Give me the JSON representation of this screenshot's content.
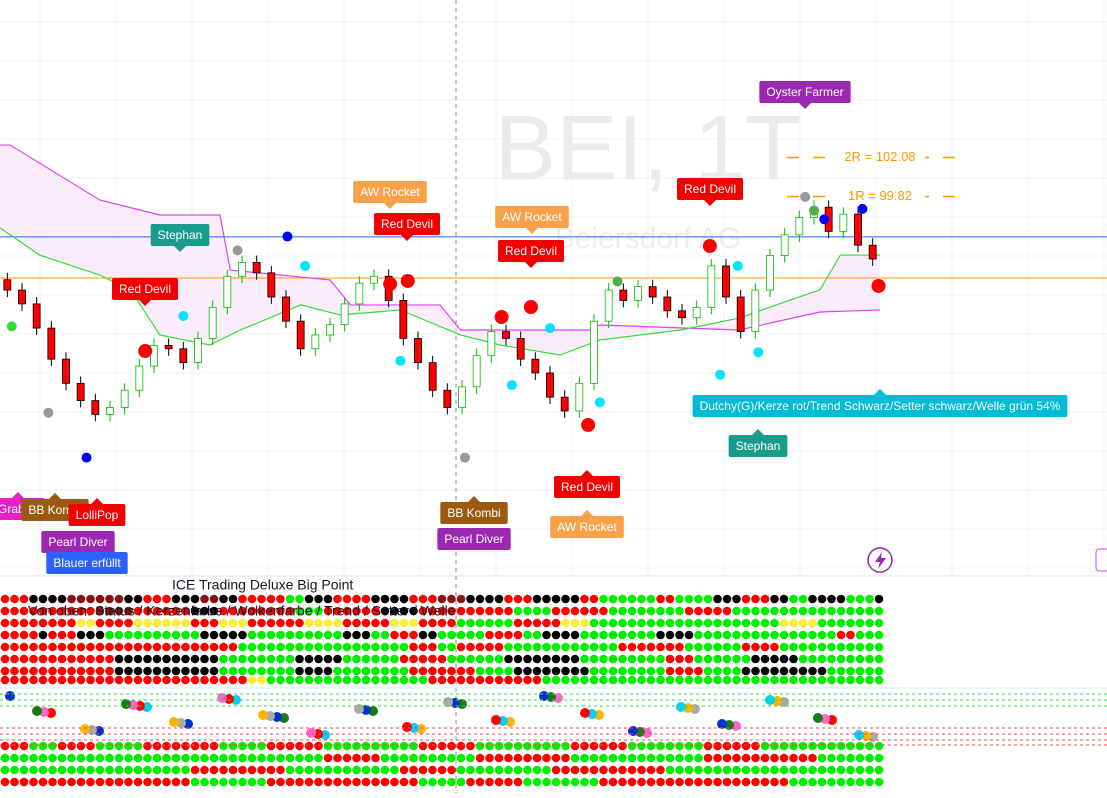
{
  "chart_data": {
    "type": "candlestick",
    "watermark": "BEI, 1T",
    "watermark_subtitle": "Beiersdorf AG",
    "ylim": [
      77.9,
      111.2
    ],
    "xlim": [
      0,
      60
    ],
    "up_color": "#ffffff",
    "up_border": "#00c000",
    "down_color": "#ff0000",
    "open": [
      95.0,
      94.4,
      93.6,
      92.2,
      90.4,
      89.0,
      88.0,
      87.2,
      87.6,
      88.6,
      90.0,
      91.2,
      91.0,
      90.2,
      91.6,
      93.4,
      95.2,
      96.0,
      95.4,
      94.0,
      92.6,
      91.0,
      91.8,
      92.4,
      93.6,
      94.8,
      95.2,
      93.8,
      91.6,
      90.2,
      88.6,
      87.6,
      88.8,
      90.6,
      92.0,
      91.6,
      90.4,
      89.6,
      88.2,
      87.4,
      89.0,
      92.6,
      94.4,
      93.8,
      94.6,
      94.0,
      93.2,
      92.8,
      93.4,
      95.8,
      94.0,
      92.0,
      94.4,
      96.4,
      97.6,
      98.6,
      99.2,
      97.8,
      98.8,
      97.0
    ],
    "high": [
      95.4,
      94.8,
      94.0,
      92.6,
      90.8,
      89.4,
      88.4,
      88.0,
      89.0,
      90.4,
      91.6,
      91.6,
      91.4,
      92.0,
      93.8,
      95.6,
      96.4,
      96.4,
      95.8,
      94.4,
      93.0,
      92.2,
      92.8,
      94.0,
      95.2,
      95.6,
      95.6,
      94.2,
      92.0,
      90.6,
      89.0,
      89.2,
      91.0,
      92.4,
      92.4,
      92.0,
      90.8,
      90.0,
      88.6,
      89.4,
      93.0,
      94.8,
      94.8,
      95.0,
      95.0,
      94.4,
      93.6,
      93.8,
      96.2,
      96.2,
      94.4,
      94.8,
      96.8,
      98.0,
      99.0,
      99.6,
      99.6,
      99.2,
      99.2,
      97.4
    ],
    "low": [
      94.0,
      93.2,
      91.8,
      90.0,
      88.6,
      87.6,
      86.8,
      86.8,
      87.2,
      88.2,
      89.6,
      90.6,
      89.8,
      89.8,
      91.2,
      93.0,
      94.8,
      95.0,
      93.6,
      92.2,
      90.6,
      90.6,
      91.4,
      92.0,
      93.2,
      94.4,
      93.4,
      91.2,
      89.8,
      88.2,
      87.2,
      87.2,
      88.4,
      90.2,
      91.2,
      90.0,
      89.2,
      87.8,
      87.0,
      87.0,
      88.6,
      92.2,
      93.4,
      93.4,
      93.6,
      92.8,
      92.4,
      92.4,
      93.0,
      93.6,
      91.6,
      91.6,
      94.0,
      96.0,
      97.2,
      98.2,
      97.4,
      97.4,
      96.6,
      95.8
    ],
    "close": [
      94.4,
      93.6,
      92.2,
      90.4,
      89.0,
      88.0,
      87.2,
      87.6,
      88.6,
      90.0,
      91.2,
      91.0,
      90.2,
      91.6,
      93.4,
      95.2,
      96.0,
      95.4,
      94.0,
      92.6,
      91.0,
      91.8,
      92.4,
      93.6,
      94.8,
      95.2,
      93.8,
      91.6,
      90.2,
      88.6,
      87.6,
      88.8,
      90.6,
      92.0,
      91.6,
      90.4,
      89.6,
      88.2,
      87.4,
      89.0,
      92.6,
      94.4,
      93.8,
      94.6,
      94.0,
      93.2,
      92.8,
      93.4,
      95.8,
      94.0,
      92.0,
      94.4,
      96.4,
      97.6,
      98.6,
      99.2,
      97.8,
      98.8,
      97.0,
      96.2
    ],
    "lines": [
      {
        "color": "#e040fb",
        "x": [
          0,
          0.7,
          6.8,
          10.9,
          15.0,
          15.7,
          22.5,
          23.9,
          30.0,
          31.4,
          40.2,
          40.9,
          50.4,
          55.9,
          60
        ],
        "values": [
          102.8,
          102.8,
          99.62,
          98.75,
          98.75,
          95.56,
          94.99,
          93.54,
          93.54,
          92.09,
          92.09,
          92.38,
          92.09,
          93.13,
          93.25
        ]
      },
      {
        "color": "#33dd33",
        "x": [
          0,
          2.7,
          6.8,
          8.9,
          10.9,
          14.3,
          16.4,
          20.5,
          23.2,
          27.3,
          31.4,
          34.1,
          38.2,
          40.9,
          46.4,
          50.4,
          53.9,
          55.9,
          57.3,
          60
        ],
        "values": [
          98.0,
          96.43,
          95.27,
          94.41,
          91.8,
          91.22,
          92.09,
          93.54,
          92.96,
          93.25,
          91.8,
          91.22,
          90.64,
          91.51,
          92.09,
          92.78,
          93.83,
          94.41,
          96.43,
          96.43
        ]
      }
    ],
    "price_lines": [
      {
        "value": 97.48,
        "color": "#2962ff"
      },
      {
        "value": 95.1,
        "color": "#ff9800"
      }
    ],
    "levels": [
      {
        "label": "2R = 102.08",
        "value": 102.08,
        "color": "#ff9800"
      },
      {
        "label": "1R = 99.82",
        "value": 99.82,
        "color": "#ff9800"
      }
    ],
    "markers": {
      "x": [
        9.9,
        26.6,
        27.8,
        34.2,
        36.2,
        48.4,
        40.1,
        59.9,
        12.5,
        20.8,
        27.3,
        34.9,
        37.5,
        40.9,
        49.1,
        51.7,
        50.3,
        0.8,
        42.1,
        55.5,
        19.6,
        5.9,
        56.2,
        58.8,
        16.2,
        31.7,
        3.3,
        54.9
      ],
      "values": [
        90.87,
        94.75,
        94.93,
        92.84,
        93.42,
        96.95,
        86.59,
        94.64,
        92.9,
        95.8,
        90.3,
        88.9,
        92.2,
        87.9,
        89.5,
        90.8,
        95.8,
        92.3,
        94.9,
        99.0,
        97.5,
        84.7,
        98.5,
        99.1,
        96.7,
        84.7,
        87.3,
        99.8
      ],
      "colors": [
        "#ff0000",
        "#ff0000",
        "#ff0000",
        "#ff0000",
        "#ff0000",
        "#ff0000",
        "#ff0000",
        "#ff0000",
        "#00e5ff",
        "#00e5ff",
        "#00e5ff",
        "#00e5ff",
        "#00e5ff",
        "#00e5ff",
        "#00e5ff",
        "#00e5ff",
        "#00e5ff",
        "#33dd33",
        "#4caf50",
        "#4caf50",
        "#0000ff",
        "#0000ff",
        "#0000ff",
        "#0000ff",
        "#999999",
        "#999999",
        "#999999",
        "#999999"
      ]
    },
    "annotations": [
      {
        "text": "Stephan",
        "color": "#1a9c8c"
      },
      {
        "text": "Red Devil",
        "color": "#f20000"
      },
      {
        "text": "AW Rocket",
        "color": "#f7a14a"
      },
      {
        "text": "Red Devil",
        "color": "#f20000"
      },
      {
        "text": "AW Rocket",
        "color": "#f7a14a"
      },
      {
        "text": "Red Devil",
        "color": "#f20000"
      },
      {
        "text": "Red Devil",
        "color": "#f20000"
      },
      {
        "text": "Oyster Farmer",
        "color": "#9c27b0"
      },
      {
        "text": "Dutchy(G)/Kerze rot/Trend Schwarz/Setter schwarz/Welle grün 54%",
        "color": "#00bcd4"
      },
      {
        "text": "Stephan",
        "color": "#1a9c8c"
      },
      {
        "text": "Red Devil",
        "color": "#f20000"
      },
      {
        "text": "AW Rocket",
        "color": "#f7a14a"
      },
      {
        "text": "BB Kombi",
        "color": "#9c5a10"
      },
      {
        "text": "Pearl Diver",
        "color": "#9c27b0"
      },
      {
        "text": "Grabbe",
        "color": "#e91ec8"
      },
      {
        "text": "BB Kombi",
        "color": "#9c5a10"
      },
      {
        "text": "LolliPop",
        "color": "#f20000"
      },
      {
        "text": "Pearl Diver",
        "color": "#9c27b0"
      },
      {
        "text": "Blauer erfüllt",
        "color": "#2962ff"
      }
    ],
    "indicator": {
      "title": "ICE Trading Deluxe Big Point",
      "subtitle": "Von oben: Status / Kerzenfarbe / Wolkenfarbe / Trend / Setter / Welle"
    }
  }
}
